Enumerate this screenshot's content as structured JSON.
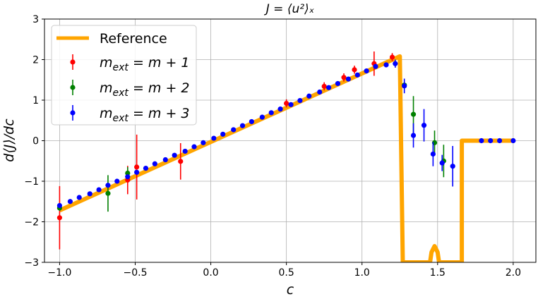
{
  "chart_data": {
    "type": "scatter",
    "title": "J = ⟨u²⟩ₓ",
    "xlabel": "c",
    "ylabel": "d⟨J⟩/dc",
    "xlim": [
      -1.1,
      2.15
    ],
    "ylim": [
      -3,
      3
    ],
    "xticks": [
      -1.0,
      -0.5,
      0.0,
      0.5,
      1.0,
      1.5,
      2.0
    ],
    "xtick_labels": [
      "−1.0",
      "−0.5",
      "0.0",
      "0.5",
      "1.0",
      "1.5",
      "2.0"
    ],
    "yticks": [
      -3,
      -2,
      -1,
      0,
      1,
      2,
      3
    ],
    "ytick_labels": [
      "−3",
      "−2",
      "−1",
      "0",
      "1",
      "2",
      "3"
    ],
    "grid": true,
    "legend_position": "top-left",
    "reference": {
      "name": "Reference",
      "color": "#ffa500",
      "x": [
        -1.0,
        1.25,
        1.27,
        1.45,
        1.46,
        1.48,
        1.5,
        1.51,
        1.53,
        1.66,
        1.66,
        2.0
      ],
      "y": [
        -1.72,
        2.08,
        -3.0,
        -3.0,
        -2.75,
        -2.6,
        -2.75,
        -3.0,
        -3.0,
        -3.0,
        0.0,
        0.0
      ]
    },
    "series": [
      {
        "name_main": "m",
        "name_sub": "ext",
        "name_tail": " = m + 1",
        "color": "#ff0000",
        "x": [
          -1.0,
          -0.55,
          -0.49,
          -0.2,
          0.5,
          0.75,
          0.88,
          0.95,
          1.08,
          1.2
        ],
        "y": [
          -1.9,
          -0.97,
          -0.65,
          -0.51,
          0.92,
          1.34,
          1.56,
          1.75,
          1.9,
          2.06
        ],
        "err": [
          0.78,
          0.35,
          0.8,
          0.45,
          0.1,
          0.1,
          0.1,
          0.1,
          0.3,
          0.1
        ]
      },
      {
        "name_main": "m",
        "name_sub": "ext",
        "name_tail": " = m + 2",
        "color": "#008000",
        "x": [
          -1.0,
          -0.68,
          -0.55,
          1.28,
          1.34,
          1.48,
          1.54
        ],
        "y": [
          -1.66,
          -1.3,
          -0.8,
          1.37,
          0.65,
          -0.05,
          -0.5
        ],
        "err": [
          0.07,
          0.45,
          0.15,
          0.05,
          0.45,
          0.3,
          0.4
        ]
      },
      {
        "name_main": "m",
        "name_sub": "ext",
        "name_tail": " = m + 3",
        "color": "#0000ff",
        "x": [
          -1.0,
          -0.93,
          -0.87,
          -0.8,
          -0.74,
          -0.68,
          -0.62,
          -0.55,
          -0.49,
          -0.43,
          -0.37,
          -0.3,
          -0.24,
          -0.17,
          -0.11,
          -0.05,
          0.02,
          0.08,
          0.15,
          0.21,
          0.27,
          0.34,
          0.4,
          0.46,
          0.53,
          0.59,
          0.65,
          0.72,
          0.78,
          0.84,
          0.91,
          0.97,
          1.03,
          1.09,
          1.16,
          1.22,
          1.28,
          1.34,
          1.41,
          1.47,
          1.53,
          1.6,
          1.79,
          1.85,
          1.91,
          2.0
        ],
        "y": [
          -1.6,
          -1.5,
          -1.4,
          -1.31,
          -1.21,
          -1.1,
          -1.0,
          -0.89,
          -0.78,
          -0.68,
          -0.57,
          -0.47,
          -0.36,
          -0.26,
          -0.15,
          -0.05,
          0.06,
          0.16,
          0.27,
          0.37,
          0.47,
          0.58,
          0.69,
          0.78,
          0.89,
          0.99,
          1.1,
          1.2,
          1.31,
          1.41,
          1.52,
          1.62,
          1.72,
          1.83,
          1.87,
          1.9,
          1.35,
          0.13,
          0.38,
          -0.33,
          -0.55,
          -0.63,
          0.0,
          0.0,
          0.0,
          0.0
        ],
        "err": [
          0.05,
          0.05,
          0.05,
          0.05,
          0.05,
          0.05,
          0.05,
          0.05,
          0.05,
          0.05,
          0.05,
          0.05,
          0.05,
          0.05,
          0.05,
          0.05,
          0.05,
          0.05,
          0.05,
          0.05,
          0.05,
          0.05,
          0.05,
          0.05,
          0.05,
          0.05,
          0.05,
          0.05,
          0.05,
          0.05,
          0.05,
          0.05,
          0.05,
          0.05,
          0.05,
          0.1,
          0.18,
          0.3,
          0.4,
          0.3,
          0.2,
          0.5,
          0.0,
          0.0,
          0.0,
          0.0
        ]
      }
    ]
  }
}
